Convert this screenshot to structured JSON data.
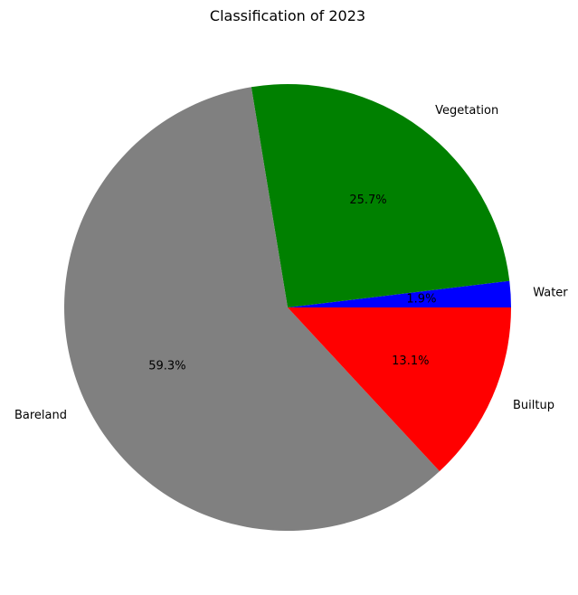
{
  "chart_data": {
    "type": "pie",
    "title": "Classification of 2023",
    "slices": [
      {
        "label": "Water",
        "value": 1.9,
        "pct_label": "1.9%",
        "color": "#0000ff"
      },
      {
        "label": "Vegetation",
        "value": 25.7,
        "pct_label": "25.7%",
        "color": "#008000"
      },
      {
        "label": "Bareland",
        "value": 59.3,
        "pct_label": "59.3%",
        "color": "#808080"
      },
      {
        "label": "Builtup",
        "value": 13.1,
        "pct_label": "13.1%",
        "color": "#ff0000"
      }
    ],
    "start_angle": 0,
    "direction": "counterclockwise"
  }
}
